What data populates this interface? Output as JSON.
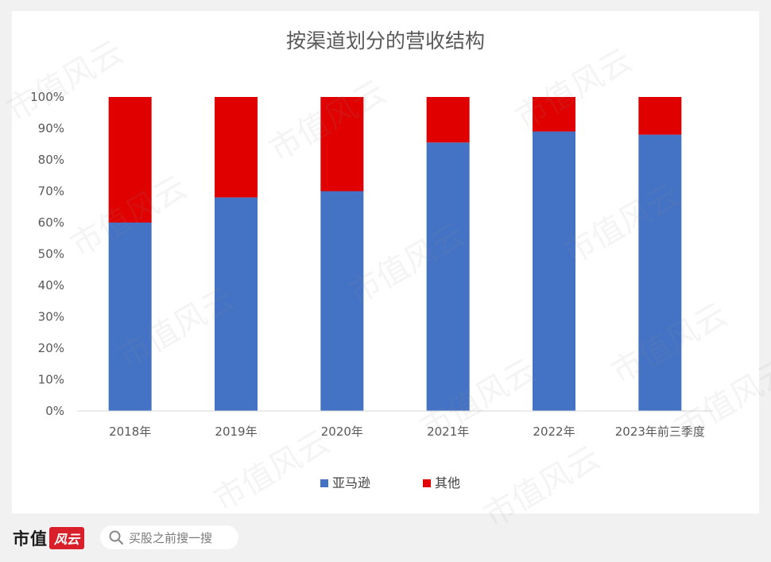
{
  "chart_data": {
    "type": "bar",
    "stacked": true,
    "title": "按渠道划分的营收结构",
    "categories": [
      "2018年",
      "2019年",
      "2020年",
      "2021年",
      "2022年",
      "2023年前三季度"
    ],
    "series": [
      {
        "name": "亚马逊",
        "color": "#4472c4",
        "values": [
          0.6,
          0.68,
          0.7,
          0.855,
          0.89,
          0.88
        ]
      },
      {
        "name": "其他",
        "color": "#e00000",
        "values": [
          0.4,
          0.32,
          0.3,
          0.145,
          0.11,
          0.12
        ]
      }
    ],
    "ylim": [
      0,
      1
    ],
    "yticks": [
      "0%",
      "10%",
      "20%",
      "30%",
      "40%",
      "50%",
      "60%",
      "70%",
      "80%",
      "90%",
      "100%"
    ],
    "grid": false,
    "legend": "bottom"
  },
  "watermark": "市值风云",
  "footer": {
    "logo_text": "市值",
    "logo_badge": "风云",
    "search_placeholder": "买股之前搜一搜",
    "search_icon": "search-icon"
  }
}
